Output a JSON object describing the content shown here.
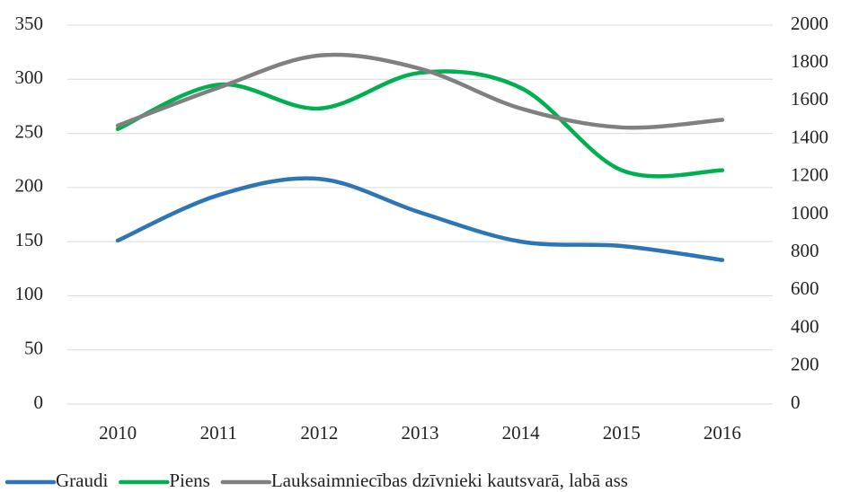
{
  "chart_data": {
    "type": "line",
    "categories": [
      "2010",
      "2011",
      "2012",
      "2013",
      "2014",
      "2015",
      "2016"
    ],
    "series": [
      {
        "name": "Graudi",
        "color": "#2e75b6",
        "values": [
          151,
          193,
          208,
          177,
          150,
          146,
          133
        ]
      },
      {
        "name": "Piens",
        "color": "#00b050",
        "values": [
          254,
          295,
          273,
          306,
          292,
          216,
          216
        ]
      },
      {
        "name": "Lauksaimniecības dzīvnieki kautsvarā, labā ass",
        "color": "#808080",
        "axis": "y2",
        "values": [
          1470,
          1670,
          1840,
          1770,
          1560,
          1460,
          1500
        ]
      }
    ],
    "ylim": [
      0,
      350
    ],
    "yticks": [
      0,
      50,
      100,
      150,
      200,
      250,
      300,
      350
    ],
    "y2lim": [
      0,
      2000
    ],
    "y2ticks": [
      0,
      200,
      400,
      600,
      800,
      1000,
      1200,
      1400,
      1600,
      1800,
      2000
    ],
    "grid": true,
    "legend": "bottom",
    "smooth": true
  }
}
